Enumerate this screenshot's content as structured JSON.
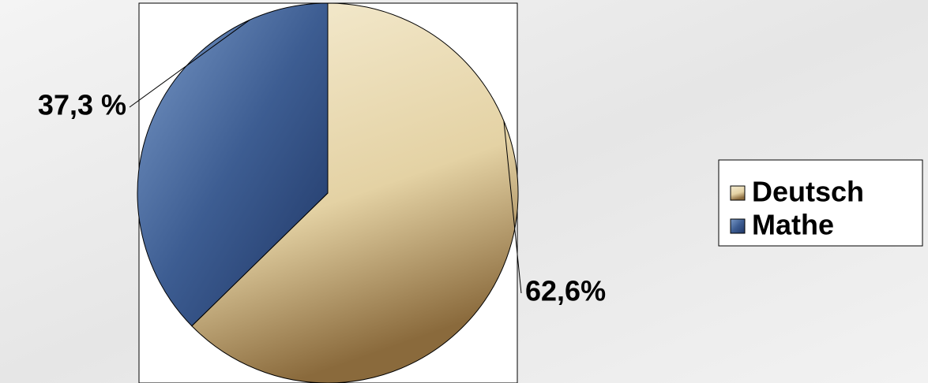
{
  "chart_data": {
    "type": "pie",
    "categories": [
      "Deutsch",
      "Mathe"
    ],
    "values": [
      62.6,
      37.3
    ],
    "value_labels": [
      "62,6%",
      "37,3 %"
    ],
    "colors": [
      "#e8d9b0",
      "#4a6a9c"
    ],
    "legend": "right"
  }
}
